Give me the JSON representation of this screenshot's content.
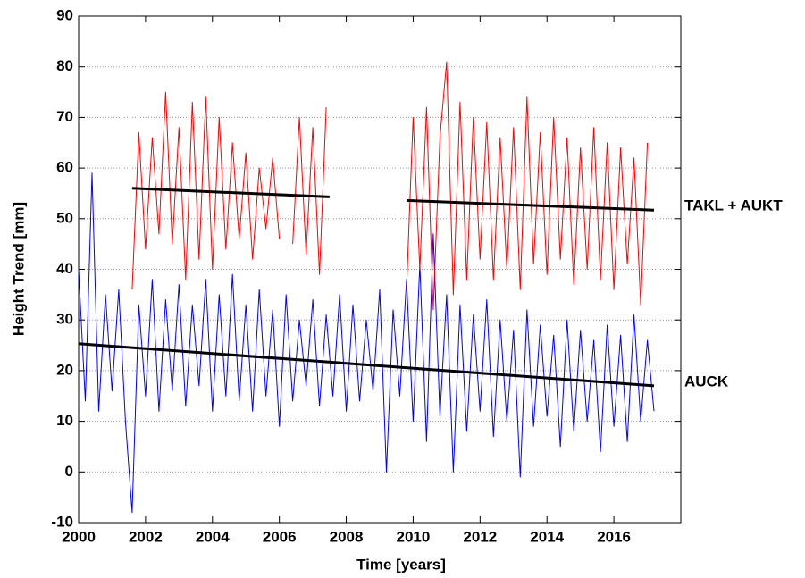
{
  "chart_data": {
    "type": "line",
    "x_label": "Time [years]",
    "y_label": "Height Trend [mm]",
    "xlim": [
      2000,
      2018
    ],
    "ylim": [
      -10,
      90
    ],
    "xticks": [
      2000,
      2002,
      2004,
      2006,
      2008,
      2010,
      2012,
      2014,
      2016
    ],
    "yticks": [
      -10,
      0,
      10,
      20,
      30,
      40,
      50,
      60,
      70,
      80,
      90
    ],
    "grid": true,
    "series": [
      {
        "color": "#0000ff",
        "width": 1,
        "x": [
          2000.0,
          2000.2,
          2000.4,
          2000.6,
          2000.8,
          2001.0,
          2001.2,
          2001.4,
          2001.6,
          2001.8,
          2002.0,
          2002.2,
          2002.4,
          2002.6,
          2002.8,
          2003.0,
          2003.2,
          2003.4,
          2003.6,
          2003.8,
          2004.0,
          2004.2,
          2004.4,
          2004.6,
          2004.8,
          2005.0,
          2005.2,
          2005.4,
          2005.6,
          2005.8,
          2006.0,
          2006.2,
          2006.4,
          2006.6,
          2006.8,
          2007.0,
          2007.2,
          2007.4,
          2007.6,
          2007.8,
          2008.0,
          2008.2,
          2008.4,
          2008.6,
          2008.8,
          2009.0,
          2009.2,
          2009.4,
          2009.6,
          2009.8,
          2010.0,
          2010.2,
          2010.4,
          2010.6,
          2010.8,
          2011.0,
          2011.2,
          2011.4,
          2011.6,
          2011.8,
          2012.0,
          2012.2,
          2012.4,
          2012.6,
          2012.8,
          2013.0,
          2013.2,
          2013.4,
          2013.6,
          2013.8,
          2014.0,
          2014.2,
          2014.4,
          2014.6,
          2014.8,
          2015.0,
          2015.2,
          2015.4,
          2015.6,
          2015.8,
          2016.0,
          2016.2,
          2016.4,
          2016.6,
          2016.8,
          2017.0,
          2017.2
        ],
        "values": [
          40,
          14,
          59,
          12,
          35,
          16,
          36,
          10,
          -8,
          33,
          15,
          38,
          12,
          34,
          16,
          37,
          13,
          33,
          17,
          38,
          12,
          35,
          15,
          39,
          14,
          33,
          12,
          36,
          15,
          32,
          9,
          35,
          14,
          30,
          17,
          34,
          13,
          31,
          15,
          35,
          12,
          33,
          14,
          30,
          16,
          36,
          0,
          32,
          15,
          38,
          10,
          41,
          6,
          47,
          11,
          35,
          0,
          33,
          8,
          31,
          12,
          34,
          7,
          30,
          10,
          28,
          -1,
          32,
          9,
          29,
          11,
          27,
          5,
          30,
          8,
          28,
          10,
          26,
          4,
          29,
          9,
          27,
          6,
          31,
          10,
          26,
          12
        ]
      },
      {
        "color": "#ff0000",
        "width": 1,
        "x": [
          2001.6,
          2001.8,
          2002.0,
          2002.2,
          2002.4,
          2002.6,
          2002.8,
          2003.0,
          2003.2,
          2003.4,
          2003.6,
          2003.8,
          2004.0,
          2004.2,
          2004.4,
          2004.6,
          2004.8,
          2005.0,
          2005.2,
          2005.4,
          2005.6,
          2005.8,
          2006.0,
          2006.2,
          2006.4,
          2006.6,
          2006.8,
          2007.0,
          2007.2,
          2007.4,
          2007.6,
          2007.8,
          2008.0,
          2008.2,
          2008.4,
          2008.6,
          2008.8,
          2009.0,
          2009.2,
          2009.4,
          2009.6,
          2009.8,
          2010.0,
          2010.2,
          2010.4,
          2010.6,
          2010.8,
          2011.0,
          2011.2,
          2011.4,
          2011.6,
          2011.8,
          2012.0,
          2012.2,
          2012.4,
          2012.6,
          2012.8,
          2013.0,
          2013.2,
          2013.4,
          2013.6,
          2013.8,
          2014.0,
          2014.2,
          2014.4,
          2014.6,
          2014.8,
          2015.0,
          2015.2,
          2015.4,
          2015.6,
          2015.8,
          2016.0,
          2016.2,
          2016.4,
          2016.6,
          2016.8,
          2017.0
        ],
        "values": [
          36,
          67,
          44,
          66,
          47,
          75,
          45,
          68,
          38,
          73,
          42,
          74,
          40,
          70,
          44,
          65,
          46,
          63,
          42,
          60,
          48,
          62,
          46,
          null,
          45,
          70,
          43,
          68,
          39,
          72,
          null,
          null,
          null,
          null,
          null,
          null,
          null,
          null,
          null,
          null,
          null,
          36,
          70,
          40,
          72,
          32,
          66,
          81,
          35,
          73,
          38,
          70,
          42,
          69,
          38,
          66,
          40,
          68,
          36,
          74,
          41,
          67,
          39,
          70,
          42,
          66,
          37,
          64,
          40,
          68,
          38,
          65,
          36,
          64,
          41,
          62,
          33,
          65
        ]
      },
      {
        "color": "#000000",
        "width": 3,
        "name": "TAKL + AUKT",
        "x": [
          2001.6,
          2007.5,
          2008.6,
          2009.8,
          2017.2
        ],
        "values": [
          56,
          54.3,
          null,
          53.6,
          51.7
        ]
      },
      {
        "color": "#000000",
        "width": 3,
        "name": "AUCK",
        "x": [
          2000.0,
          2017.2
        ],
        "values": [
          25.3,
          17
        ]
      }
    ]
  }
}
